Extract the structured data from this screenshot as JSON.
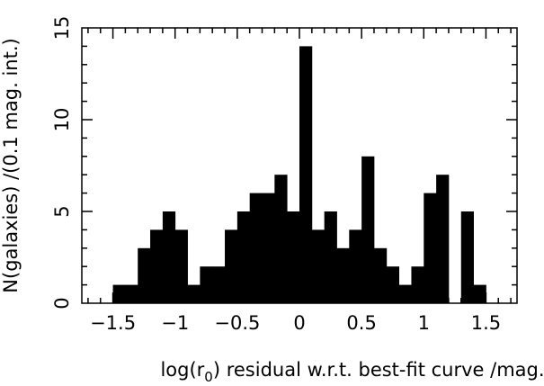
{
  "chart_data": {
    "type": "bar",
    "title": "",
    "xlabel": {
      "prefix": "log(r",
      "subscript": "0",
      "suffix": ") residual w.r.t. best-fit curve /mag."
    },
    "ylabel": "N(galaxies) /(0.1 mag. int.)",
    "xlim": [
      -1.75,
      1.75
    ],
    "ylim": [
      0,
      15
    ],
    "bin_width": 0.1,
    "x_ticks": [
      {
        "value": -1.5,
        "label": "−1.5"
      },
      {
        "value": -1.0,
        "label": "−1"
      },
      {
        "value": -0.5,
        "label": "−0.5"
      },
      {
        "value": 0.0,
        "label": "0"
      },
      {
        "value": 0.5,
        "label": "0.5"
      },
      {
        "value": 1.0,
        "label": "1"
      },
      {
        "value": 1.5,
        "label": "1.5"
      }
    ],
    "x_minor_step": 0.1,
    "y_ticks": [
      {
        "value": 0,
        "label": "0"
      },
      {
        "value": 5,
        "label": "5"
      },
      {
        "value": 10,
        "label": "10"
      },
      {
        "value": 15,
        "label": "15"
      }
    ],
    "y_minor_step": 1,
    "grid": false,
    "bar_color": "#000000",
    "bins": [
      {
        "x": -1.45,
        "count": 1
      },
      {
        "x": -1.35,
        "count": 1
      },
      {
        "x": -1.25,
        "count": 3
      },
      {
        "x": -1.15,
        "count": 4
      },
      {
        "x": -1.05,
        "count": 5
      },
      {
        "x": -0.95,
        "count": 4
      },
      {
        "x": -0.85,
        "count": 1
      },
      {
        "x": -0.75,
        "count": 2
      },
      {
        "x": -0.65,
        "count": 2
      },
      {
        "x": -0.55,
        "count": 4
      },
      {
        "x": -0.45,
        "count": 5
      },
      {
        "x": -0.35,
        "count": 6
      },
      {
        "x": -0.25,
        "count": 6
      },
      {
        "x": -0.15,
        "count": 7
      },
      {
        "x": -0.05,
        "count": 5
      },
      {
        "x": 0.05,
        "count": 14
      },
      {
        "x": 0.15,
        "count": 4
      },
      {
        "x": 0.25,
        "count": 5
      },
      {
        "x": 0.35,
        "count": 3
      },
      {
        "x": 0.45,
        "count": 4
      },
      {
        "x": 0.55,
        "count": 8
      },
      {
        "x": 0.65,
        "count": 3
      },
      {
        "x": 0.75,
        "count": 2
      },
      {
        "x": 0.85,
        "count": 1
      },
      {
        "x": 0.95,
        "count": 2
      },
      {
        "x": 1.05,
        "count": 6
      },
      {
        "x": 1.15,
        "count": 7
      },
      {
        "x": 1.25,
        "count": 0
      },
      {
        "x": 1.35,
        "count": 5
      },
      {
        "x": 1.45,
        "count": 1
      }
    ]
  }
}
